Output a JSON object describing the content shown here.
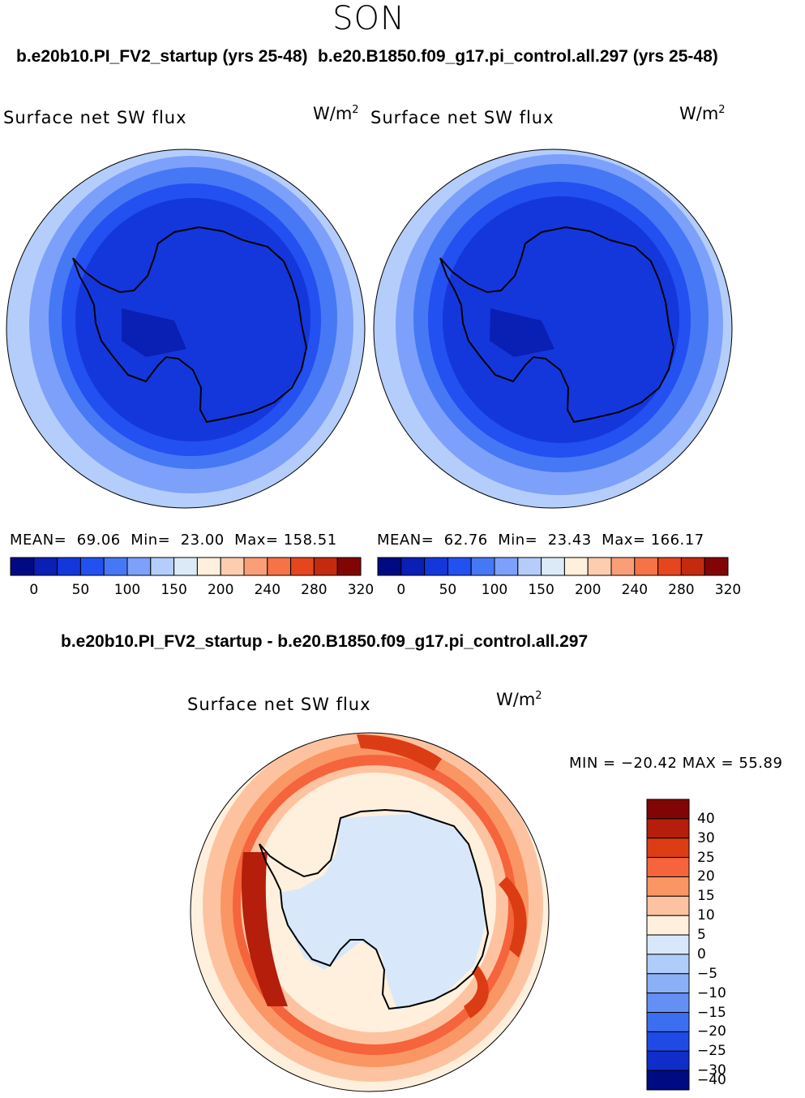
{
  "season": "SON",
  "left_panel": {
    "case_title": "b.e20b10.PI_FV2_startup (yrs 25-48)",
    "variable": "Surface net SW flux",
    "units_base": "W/m",
    "units_exp": "2",
    "stats": {
      "mean_label": "MEAN=",
      "mean": "69.06",
      "min_label": "Min=",
      "min": "23.00",
      "max_label": "Max=",
      "max": "158.51"
    }
  },
  "right_panel": {
    "case_title": "b.e20.B1850.f09_g17.pi_control.all.297 (yrs 25-48)",
    "variable": "Surface net SW flux",
    "units_base": "W/m",
    "units_exp": "2",
    "stats": {
      "mean_label": "MEAN=",
      "mean": "62.76",
      "min_label": "Min=",
      "min": "23.43",
      "max_label": "Max=",
      "max": "166.17"
    }
  },
  "abs_colorbar": {
    "colors": [
      "#000a82",
      "#0a1fb4",
      "#1437dc",
      "#2350f0",
      "#4678f5",
      "#7da0fa",
      "#b4cdfa",
      "#dceaf8",
      "#fff0de",
      "#fdcdaf",
      "#fa9e78",
      "#f57346",
      "#e6461e",
      "#c32a0f",
      "#820505"
    ],
    "ticks": [
      "0",
      "50",
      "100",
      "150",
      "200",
      "240",
      "280",
      "320"
    ]
  },
  "diff_panel": {
    "title": "b.e20b10.PI_FV2_startup - b.e20.B1850.f09_g17.pi_control.all.297",
    "variable": "Surface net SW flux",
    "units_base": "W/m",
    "units_exp": "2",
    "minmax": "MIN = −20.42  MAX =   55.89",
    "colorbar": {
      "colors": [
        "#820505",
        "#b41e0a",
        "#dc3c14",
        "#f5643c",
        "#fa9664",
        "#fdc3a0",
        "#fff0de",
        "#d8e8fa",
        "#b0cdfa",
        "#8cb0f8",
        "#6490f5",
        "#3c6ef0",
        "#1e4be6",
        "#0f2dc8",
        "#000a82"
      ],
      "labels": [
        "40",
        "30",
        "25",
        "20",
        "15",
        "10",
        "5",
        "0",
        "−5",
        "−10",
        "−15",
        "−20",
        "−25",
        "−30",
        "−40"
      ]
    }
  }
}
